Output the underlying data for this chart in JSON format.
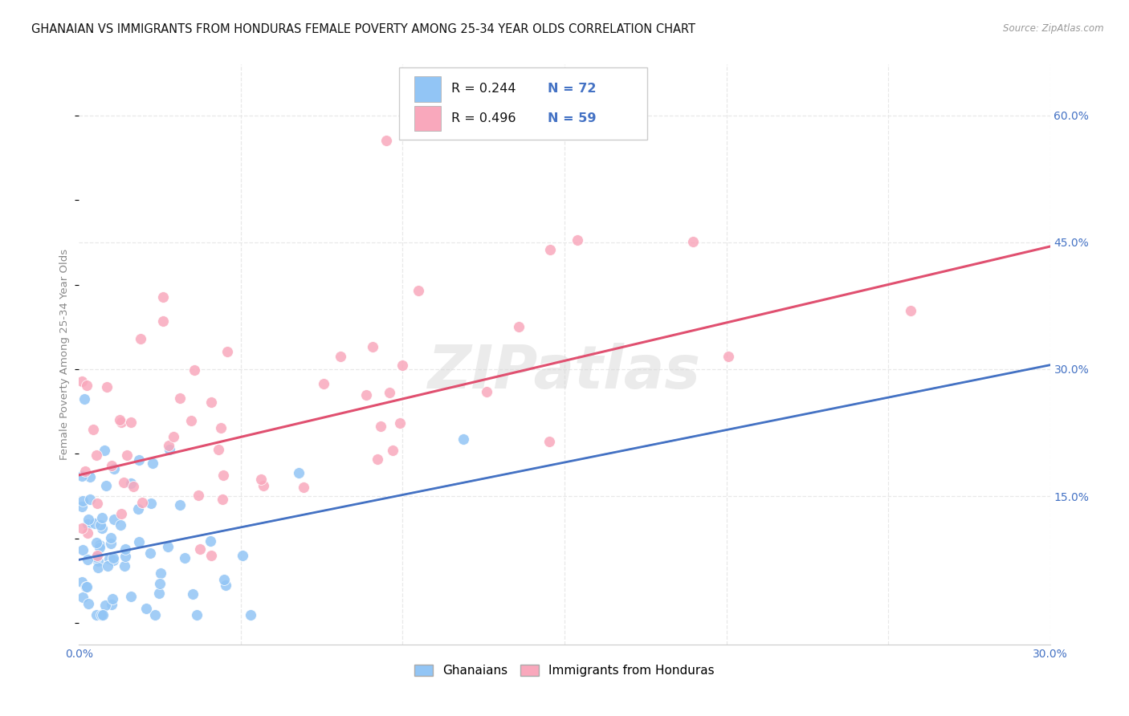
{
  "title": "GHANAIAN VS IMMIGRANTS FROM HONDURAS FEMALE POVERTY AMONG 25-34 YEAR OLDS CORRELATION CHART",
  "source": "Source: ZipAtlas.com",
  "ylabel": "Female Poverty Among 25-34 Year Olds",
  "xlim": [
    0.0,
    0.3
  ],
  "ylim": [
    -0.025,
    0.66
  ],
  "xticks": [
    0.0,
    0.05,
    0.1,
    0.15,
    0.2,
    0.25,
    0.3
  ],
  "xticklabels": [
    "0.0%",
    "",
    "",
    "",
    "",
    "",
    "30.0%"
  ],
  "yticks_right": [
    0.15,
    0.3,
    0.45,
    0.6
  ],
  "ytick_right_labels": [
    "15.0%",
    "30.0%",
    "45.0%",
    "60.0%"
  ],
  "color_ghanaian": "#92C5F5",
  "color_honduras": "#F9A8BC",
  "color_line_ghanaian": "#4472C4",
  "color_line_honduras": "#E05070",
  "color_line_ghanaian_dashed": "#8EB4E3",
  "color_text_blue": "#4472C4",
  "watermark": "ZIPatlas",
  "background_color": "#FFFFFF",
  "grid_color": "#E8E8E8",
  "title_fontsize": 10.5,
  "axis_label_fontsize": 9.5,
  "tick_fontsize": 10,
  "ghana_line_x0": 0.0,
  "ghana_line_y0": 0.075,
  "ghana_line_x1": 0.3,
  "ghana_line_y1": 0.305,
  "honduras_line_x0": 0.0,
  "honduras_line_y0": 0.175,
  "honduras_line_x1": 0.3,
  "honduras_line_y1": 0.445,
  "ghana_seed": 77,
  "honduras_seed": 99
}
